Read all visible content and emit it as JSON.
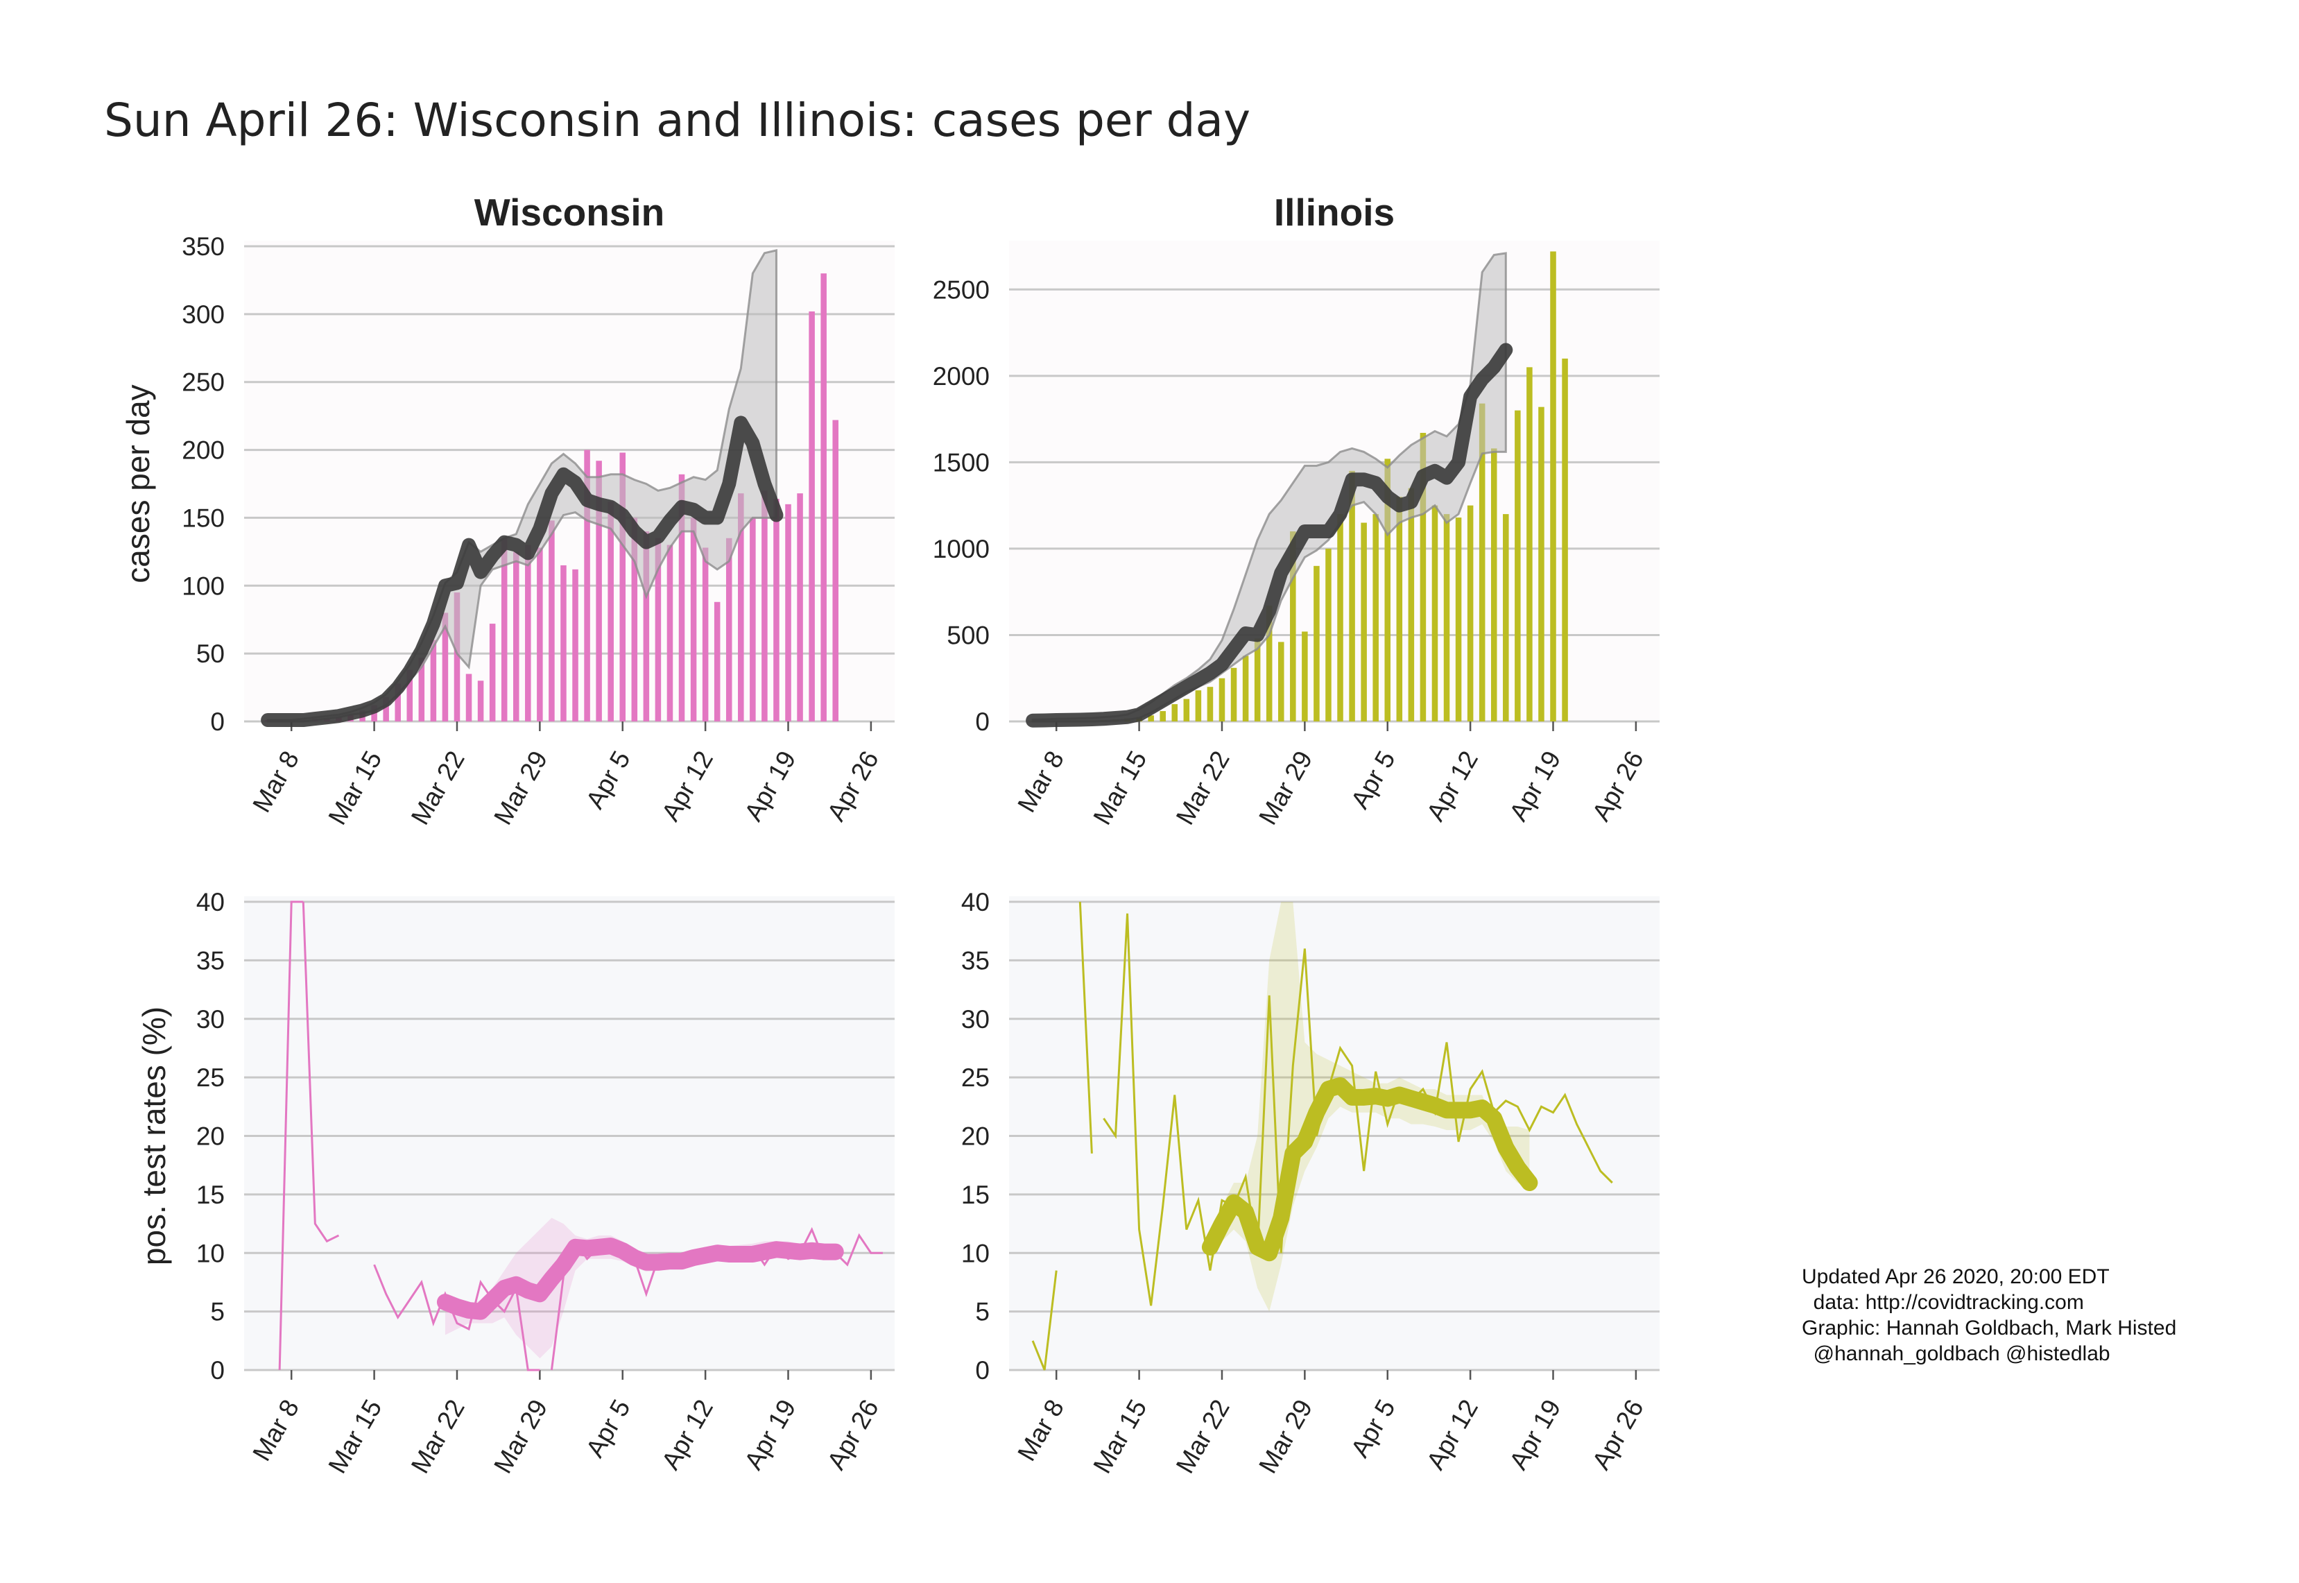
{
  "figure": {
    "title": "Sun April 26: Wisconsin and Illinois: cases per day",
    "credits": [
      "Updated Apr 26 2020, 20:00 EDT",
      "  data: http://covidtracking.com",
      "Graphic: Hannah Goldbach, Mark Histed",
      "  @hannah_goldbach @histedlab"
    ]
  },
  "colors": {
    "wisconsin": "#e377c2",
    "illinois": "#bcbd22",
    "smooth_line": "#3a3a3a",
    "band": "#bdbdbd",
    "cases_bg": "#fdfbfc",
    "rates_bg": "#f7f8fa",
    "grid": "#c8c8c8"
  },
  "chart_data": [
    {
      "id": "wi_cases",
      "type": "bar",
      "title": "Wisconsin",
      "ylabel": "cases per day",
      "xlabel": "",
      "series_color": "wisconsin",
      "x_start": "2020-03-06",
      "xtick_labels": [
        "Mar 8",
        "Mar 15",
        "Mar 22",
        "Mar 29",
        "Apr 5",
        "Apr 12",
        "Apr 19",
        "Apr 26"
      ],
      "xtick_dates": [
        "2020-03-08",
        "2020-03-15",
        "2020-03-22",
        "2020-03-29",
        "2020-04-05",
        "2020-04-12",
        "2020-04-19",
        "2020-04-26"
      ],
      "xlim": [
        "2020-03-04",
        "2020-04-28"
      ],
      "ylim": [
        0,
        350
      ],
      "yticks": [
        0,
        50,
        100,
        150,
        200,
        250,
        300,
        350
      ],
      "grid": true,
      "bars": [
        1,
        1,
        1,
        1,
        2,
        2,
        3,
        5,
        8,
        12,
        18,
        28,
        38,
        47,
        60,
        80,
        95,
        35,
        30,
        72,
        135,
        125,
        130,
        128,
        148,
        115,
        112,
        200,
        192,
        162,
        198,
        150,
        140,
        135,
        130,
        182,
        150,
        128,
        88,
        135,
        168,
        150,
        170,
        164,
        160,
        168,
        302,
        330,
        222
      ],
      "smooth": [
        1,
        1,
        1,
        1,
        2,
        3,
        4,
        6,
        8,
        11,
        16,
        25,
        37,
        52,
        72,
        100,
        102,
        130,
        110,
        122,
        132,
        130,
        124,
        142,
        168,
        182,
        176,
        163,
        160,
        158,
        152,
        140,
        132,
        136,
        148,
        158,
        156,
        150,
        150,
        175,
        220,
        205,
        175,
        152
      ],
      "band_upper": [
        1,
        1,
        1,
        2,
        3,
        4,
        5,
        7,
        10,
        14,
        20,
        30,
        42,
        58,
        78,
        102,
        110,
        132,
        125,
        130,
        135,
        138,
        160,
        175,
        190,
        197,
        190,
        180,
        180,
        182,
        182,
        178,
        175,
        170,
        172,
        176,
        180,
        178,
        185,
        230,
        260,
        330,
        345,
        347
      ],
      "band_lower": [
        0,
        0,
        0,
        0,
        1,
        2,
        3,
        5,
        6,
        8,
        12,
        20,
        30,
        40,
        55,
        70,
        50,
        40,
        100,
        112,
        115,
        118,
        115,
        125,
        138,
        152,
        154,
        148,
        145,
        142,
        130,
        118,
        92,
        112,
        128,
        140,
        140,
        118,
        112,
        118,
        140,
        150,
        150,
        150
      ]
    },
    {
      "id": "il_cases",
      "type": "bar",
      "title": "Illinois",
      "ylabel": "",
      "xlabel": "",
      "series_color": "illinois",
      "x_start": "2020-03-06",
      "xtick_labels": [
        "Mar 8",
        "Mar 15",
        "Mar 22",
        "Mar 29",
        "Apr 5",
        "Apr 12",
        "Apr 19",
        "Apr 26"
      ],
      "xtick_dates": [
        "2020-03-08",
        "2020-03-15",
        "2020-03-22",
        "2020-03-29",
        "2020-04-05",
        "2020-04-12",
        "2020-04-19",
        "2020-04-26"
      ],
      "xlim": [
        "2020-03-04",
        "2020-04-28"
      ],
      "ylim": [
        0,
        2750
      ],
      "yticks": [
        0,
        500,
        1000,
        1500,
        2000,
        2500
      ],
      "grid": true,
      "bars": [
        1,
        1,
        2,
        2,
        3,
        5,
        8,
        12,
        18,
        25,
        35,
        60,
        100,
        130,
        180,
        200,
        250,
        310,
        380,
        480,
        670,
        460,
        1100,
        520,
        900,
        1000,
        1200,
        1450,
        1150,
        1200,
        1520,
        1300,
        1350,
        1670,
        1250,
        1200,
        1180,
        1250,
        1840,
        1580,
        1200,
        1800,
        2050,
        1820,
        2720,
        2100
      ],
      "smooth": [
        5,
        6,
        8,
        9,
        10,
        12,
        15,
        20,
        25,
        40,
        80,
        120,
        160,
        200,
        240,
        280,
        330,
        420,
        510,
        500,
        640,
        860,
        980,
        1100,
        1100,
        1100,
        1200,
        1400,
        1400,
        1380,
        1300,
        1250,
        1270,
        1420,
        1450,
        1410,
        1500,
        1880,
        1980,
        2050,
        2150
      ],
      "band_upper": [
        10,
        12,
        15,
        16,
        18,
        20,
        25,
        30,
        40,
        70,
        110,
        160,
        210,
        250,
        300,
        360,
        470,
        650,
        850,
        1050,
        1200,
        1280,
        1380,
        1480,
        1480,
        1500,
        1560,
        1580,
        1560,
        1520,
        1470,
        1540,
        1600,
        1640,
        1680,
        1650,
        1720,
        1950,
        2600,
        2700,
        2710
      ],
      "band_lower": [
        0,
        0,
        0,
        0,
        0,
        0,
        2,
        5,
        10,
        20,
        50,
        90,
        130,
        170,
        200,
        230,
        280,
        330,
        380,
        420,
        500,
        700,
        830,
        950,
        990,
        1050,
        1150,
        1250,
        1270,
        1200,
        1080,
        1150,
        1180,
        1200,
        1250,
        1150,
        1200,
        1380,
        1550,
        1560,
        1560
      ]
    },
    {
      "id": "wi_rates",
      "type": "line",
      "title": "",
      "ylabel": "pos. test rates (%)",
      "xlabel": "",
      "series_color": "wisconsin",
      "xtick_labels": [
        "Mar 8",
        "Mar 15",
        "Mar 22",
        "Mar 29",
        "Apr 5",
        "Apr 12",
        "Apr 19",
        "Apr 26"
      ],
      "xtick_dates": [
        "2020-03-08",
        "2020-03-15",
        "2020-03-22",
        "2020-03-29",
        "2020-04-05",
        "2020-04-12",
        "2020-04-19",
        "2020-04-26"
      ],
      "xlim": [
        "2020-03-04",
        "2020-04-28"
      ],
      "ylim": [
        0,
        40
      ],
      "yticks": [
        0,
        5,
        10,
        15,
        20,
        25,
        30,
        35,
        40
      ],
      "grid": true,
      "raw_segments": [
        {
          "x_start": "2020-03-07",
          "values": [
            0,
            48,
            48
          ]
        },
        {
          "x_start": "2020-03-09",
          "values": [
            48,
            12.5,
            11,
            11.5
          ]
        },
        {
          "x_start": "2020-03-15",
          "values": [
            9,
            6.5,
            4.5,
            6,
            7.5,
            4,
            6.5,
            4,
            3.5,
            7.5,
            6,
            5,
            7,
            0,
            0
          ]
        },
        {
          "x_start": "2020-03-30",
          "values": [
            0,
            8,
            11,
            9.5,
            10.5,
            10.5,
            10.5,
            9.5,
            6.5,
            9.5,
            9,
            9.5,
            9.5,
            9.5,
            10,
            10,
            9.5,
            10.5,
            9,
            10.5,
            9.5,
            10,
            12,
            9.5,
            10,
            9,
            11.5,
            10,
            10
          ]
        }
      ],
      "smooth": [
        5.8,
        5.4,
        5.1,
        5.0,
        6.0,
        7.0,
        7.3,
        6.8,
        6.5,
        7.8,
        9.0,
        10.5,
        10.4,
        10.5,
        10.6,
        10.2,
        9.6,
        9.2,
        9.2,
        9.3,
        9.3,
        9.6,
        9.8,
        10.0,
        9.9,
        9.9,
        9.9,
        10.1,
        10.3,
        10.2,
        10.1,
        10.2,
        10.1,
        10.1
      ],
      "smooth_x_start": "2020-03-21",
      "band_upper": [
        6,
        5.5,
        5.5,
        6,
        7,
        8.5,
        10,
        11,
        12,
        13,
        12.5,
        11.5,
        11.2,
        11.5,
        11.5,
        11,
        10.3,
        10,
        10,
        10,
        10,
        10.2,
        10.4,
        10.6,
        10.6,
        10.7,
        10.8,
        11,
        11,
        11,
        10.8,
        10.8,
        10.7,
        10.6
      ],
      "band_lower": [
        3,
        3.5,
        4,
        4,
        4,
        4.5,
        3,
        2,
        1,
        2,
        5,
        8.5,
        9.5,
        9.5,
        9.5,
        9.3,
        8.8,
        8.4,
        8.5,
        8.6,
        8.6,
        8.9,
        9.1,
        9.3,
        9.2,
        9.2,
        9.2,
        9.4,
        9.6,
        9.5,
        9.4,
        9.6,
        9.5,
        9.5
      ]
    },
    {
      "id": "il_rates",
      "type": "line",
      "title": "",
      "ylabel": "",
      "xlabel": "",
      "series_color": "illinois",
      "xtick_labels": [
        "Mar 8",
        "Mar 15",
        "Mar 22",
        "Mar 29",
        "Apr 5",
        "Apr 12",
        "Apr 19",
        "Apr 26"
      ],
      "xtick_dates": [
        "2020-03-08",
        "2020-03-15",
        "2020-03-22",
        "2020-03-29",
        "2020-04-05",
        "2020-04-12",
        "2020-04-19",
        "2020-04-26"
      ],
      "xlim": [
        "2020-03-04",
        "2020-04-28"
      ],
      "ylim": [
        0,
        40
      ],
      "yticks": [
        0,
        5,
        10,
        15,
        20,
        25,
        30,
        35,
        40
      ],
      "grid": true,
      "raw_segments": [
        {
          "x_start": "2020-03-06",
          "values": [
            2.5,
            0,
            8.5
          ]
        },
        {
          "x_start": "2020-03-10",
          "values": [
            45,
            18.5
          ]
        },
        {
          "x_start": "2020-03-12",
          "values": [
            21.5,
            20,
            39,
            12,
            5.5,
            14,
            23.5,
            12,
            14.5,
            8.5,
            14.5,
            14,
            16.5,
            10,
            32,
            10,
            26,
            36,
            20,
            24,
            27.5,
            26,
            17,
            25.5,
            21,
            24,
            23,
            24,
            22,
            28,
            19.5,
            24,
            25.5,
            22,
            23,
            22.5,
            20.5,
            22.5,
            22,
            23.5,
            21,
            19,
            17,
            16
          ]
        }
      ],
      "smooth": [
        10.5,
        12.5,
        14.3,
        13.5,
        10.5,
        10.0,
        13.0,
        18.5,
        19.5,
        22.0,
        24.0,
        24.3,
        23.3,
        23.3,
        23.4,
        23.2,
        23.5,
        23.2,
        22.9,
        22.6,
        22.2,
        22.2,
        22.2,
        22.4,
        21.5,
        19.0,
        17.3,
        16.0
      ],
      "smooth_x_start": "2020-03-21",
      "band_upper": [
        12,
        14,
        16,
        16,
        20,
        35,
        45,
        45,
        28,
        27,
        26.5,
        26,
        25.5,
        25,
        24.5,
        24.5,
        25,
        24.5,
        24,
        24,
        23.5,
        23.5,
        23.5,
        23.5,
        21,
        20.8,
        20.8,
        20.5
      ],
      "band_lower": [
        9,
        11,
        12,
        11,
        7,
        5,
        9,
        14,
        17,
        19,
        21.5,
        22.5,
        22,
        22,
        22,
        21.5,
        21.5,
        21,
        21,
        20.8,
        20.5,
        20.5,
        20.5,
        21,
        19.5,
        17,
        16,
        15.5
      ]
    }
  ]
}
